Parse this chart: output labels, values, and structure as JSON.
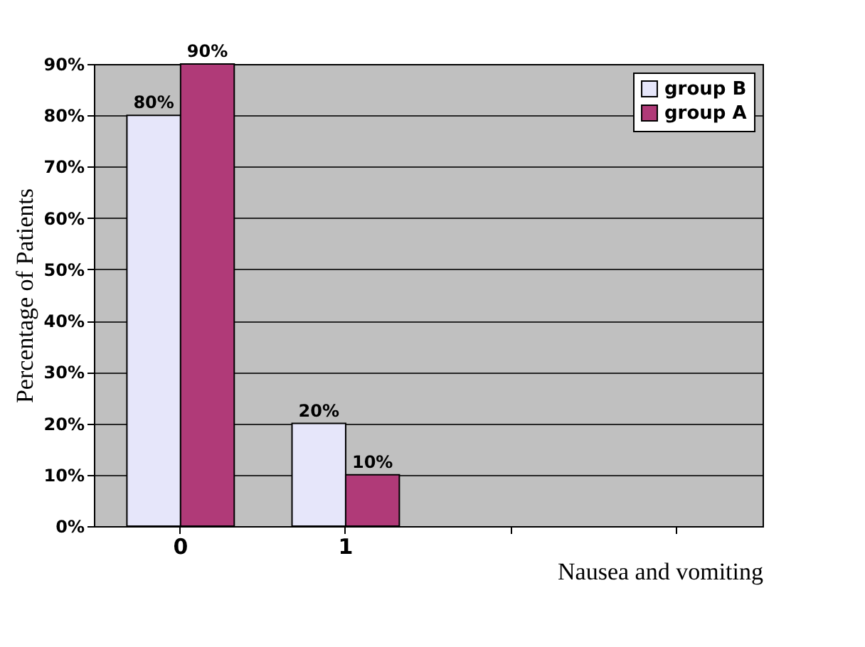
{
  "chart_data": {
    "type": "bar",
    "xlabel": "Nausea and vomiting",
    "ylabel": "Percentage of Patients",
    "categories": [
      "0",
      "1",
      null,
      null
    ],
    "series": [
      {
        "name": "group B",
        "color": "#e6e6fa",
        "values": [
          80,
          20,
          null,
          null
        ],
        "value_labels": [
          "80%",
          "20%",
          null,
          null
        ]
      },
      {
        "name": "group A",
        "color": "#b03a78",
        "values": [
          90,
          10,
          null,
          null
        ],
        "value_labels": [
          "90%",
          "10%",
          null,
          null
        ]
      }
    ],
    "ylim": [
      0,
      90
    ],
    "yticks": [
      {
        "value": 0,
        "label": "0%"
      },
      {
        "value": 10,
        "label": "10%"
      },
      {
        "value": 20,
        "label": "20%"
      },
      {
        "value": 30,
        "label": "30%"
      },
      {
        "value": 40,
        "label": "40%"
      },
      {
        "value": 50,
        "label": "50%"
      },
      {
        "value": 60,
        "label": "60%"
      },
      {
        "value": 70,
        "label": "70%"
      },
      {
        "value": 80,
        "label": "80%"
      },
      {
        "value": 90,
        "label": "90%"
      }
    ],
    "grid": "y",
    "legend": "top right"
  }
}
